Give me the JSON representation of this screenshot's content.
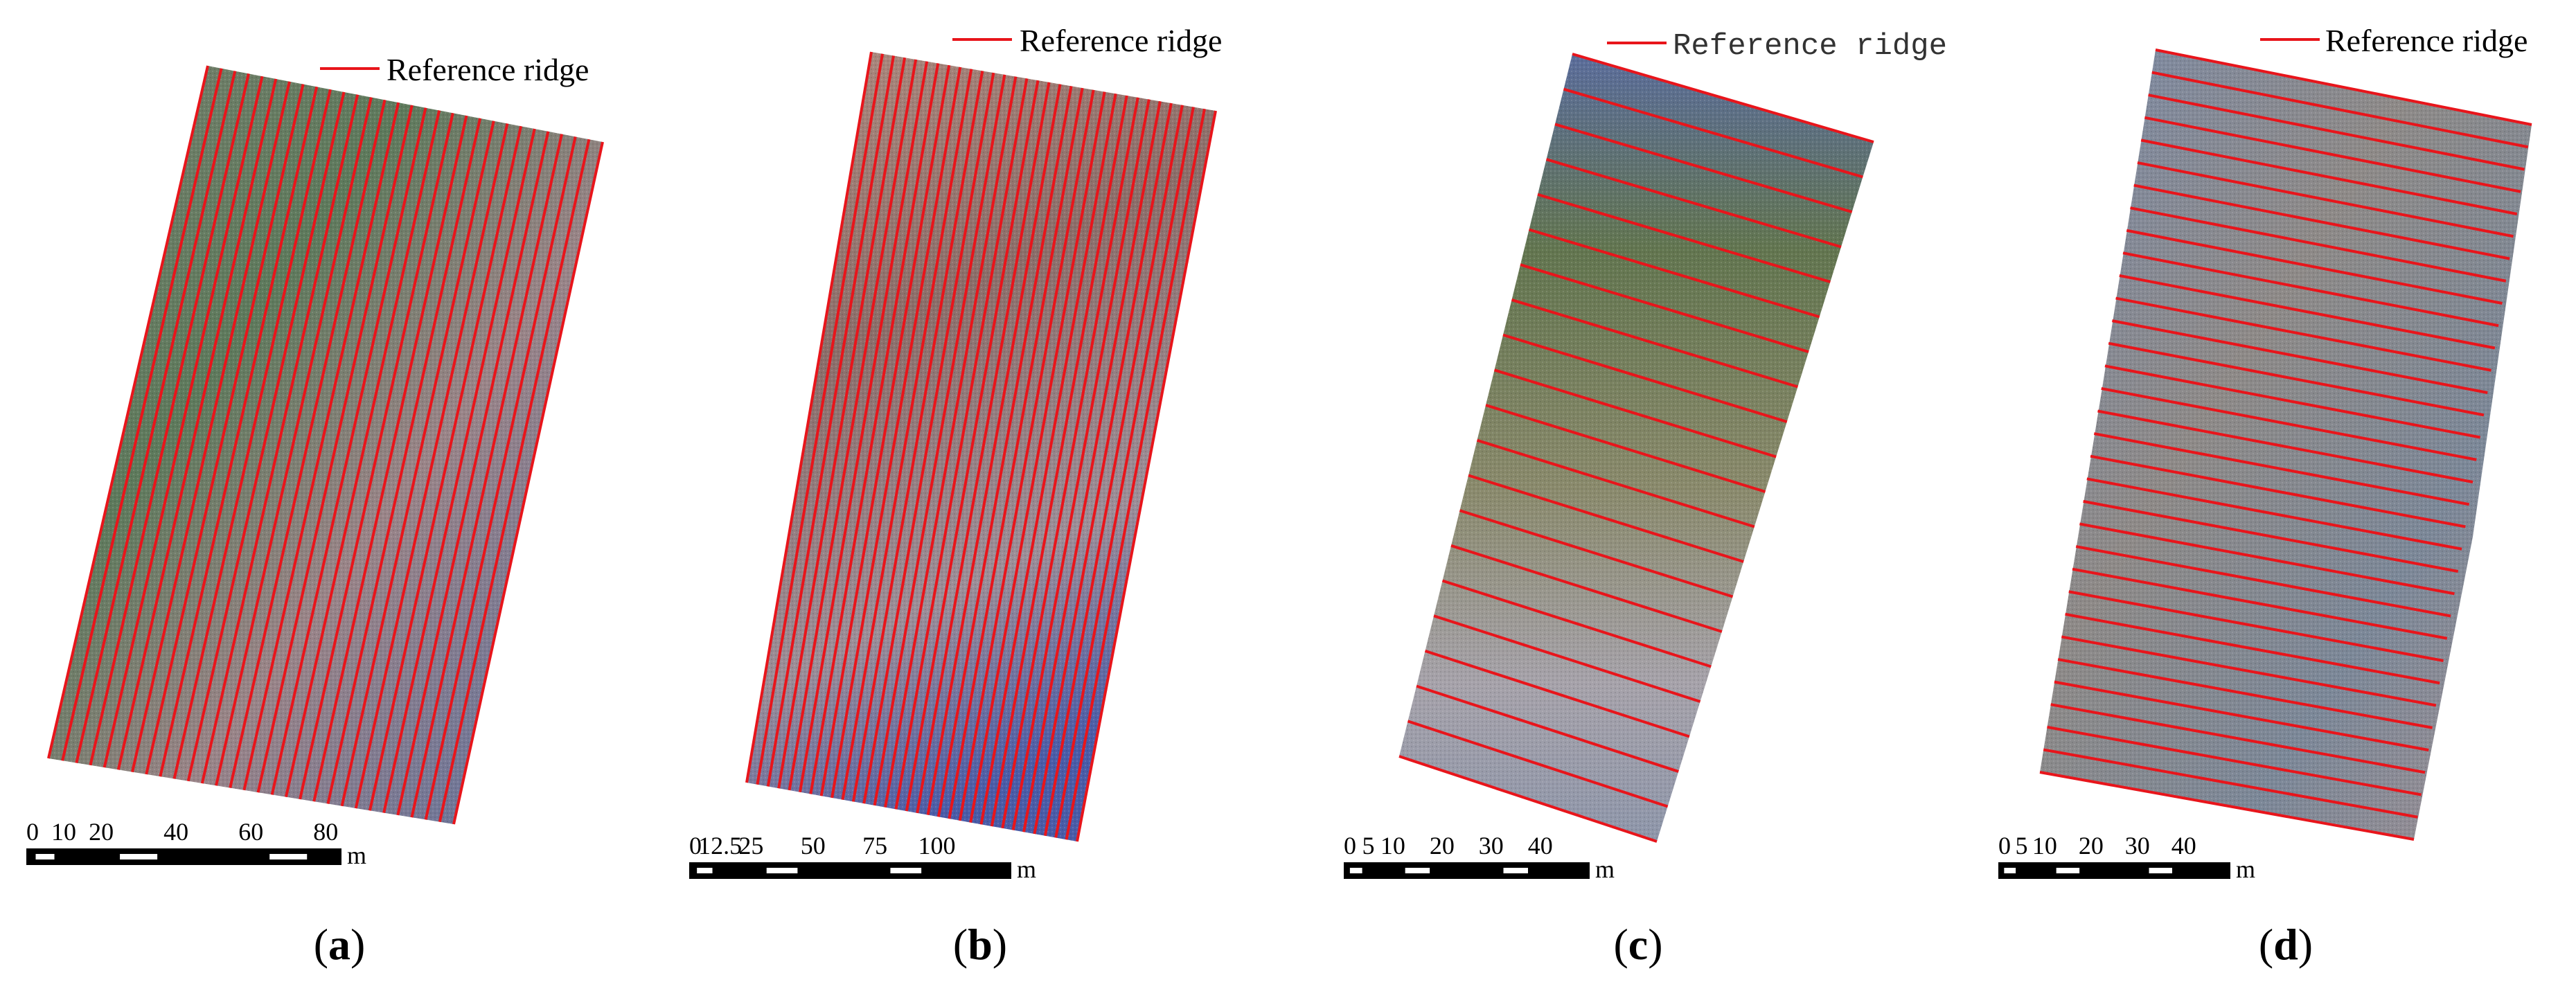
{
  "legend_label": "Reference ridge",
  "ridge_color": "#e8151b",
  "panels": [
    {
      "id": "a",
      "label_open": "(",
      "label_letter": "a",
      "label_close": ")",
      "scale_ticks": [
        "0",
        "10",
        "20",
        "40",
        "60",
        "80"
      ],
      "scale_unit": "m",
      "legend_font": "serif",
      "field_colors": [
        "#6f7a68",
        "#8f6f72",
        "#5b6f8d"
      ]
    },
    {
      "id": "b",
      "label_open": "(",
      "label_letter": "b",
      "label_close": ")",
      "scale_ticks": [
        "0",
        "12.5",
        "25",
        "50",
        "75",
        "100"
      ],
      "scale_unit": "m",
      "legend_font": "serif",
      "field_colors": [
        "#a98478",
        "#8a7372",
        "#6a78a6"
      ]
    },
    {
      "id": "c",
      "label_open": "(",
      "label_letter": "c",
      "label_close": ")",
      "scale_ticks": [
        "0",
        "5",
        "10",
        "20",
        "30",
        "40"
      ],
      "scale_unit": "m",
      "legend_font": "mono",
      "field_colors": [
        "#5d6d96",
        "#6d7a5a",
        "#9e9a9e"
      ]
    },
    {
      "id": "d",
      "label_open": "(",
      "label_letter": "d",
      "label_close": ")",
      "scale_ticks": [
        "0",
        "5",
        "10",
        "20",
        "30",
        "40"
      ],
      "scale_unit": "m",
      "legend_font": "serif",
      "field_colors": [
        "#7c8ca6",
        "#8c8b8c",
        "#9e8f8f"
      ]
    }
  ]
}
